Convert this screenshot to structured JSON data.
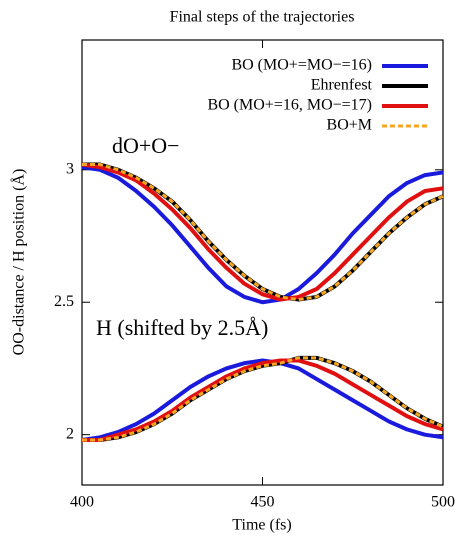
{
  "chart_data": {
    "type": "line",
    "title": "Final steps of the trajectories",
    "xlabel": "Time (fs)",
    "ylabel": "OO-distance / H position (Å)",
    "annotations": [
      "dO+O−",
      "H (shifted by 2.5Å)"
    ],
    "xlim": [
      400,
      500
    ],
    "xticks": [
      400,
      450,
      500
    ],
    "ylim": [
      1.81,
      3.49
    ],
    "yticks": [
      2,
      2.5,
      3
    ],
    "legend": "upper right",
    "x": [
      400,
      405,
      410,
      415,
      420,
      425,
      430,
      435,
      440,
      445,
      450,
      455,
      460,
      465,
      470,
      475,
      480,
      485,
      490,
      495,
      500
    ],
    "series": [
      {
        "name": "BO (MO+=MO−=16)",
        "color": "#1a1adc",
        "dash": false,
        "values": [
          3.01,
          3.0,
          2.97,
          2.92,
          2.86,
          2.79,
          2.71,
          2.63,
          2.56,
          2.52,
          2.5,
          2.51,
          2.55,
          2.61,
          2.68,
          2.76,
          2.83,
          2.9,
          2.95,
          2.98,
          2.99
        ],
        "h_values": [
          1.98,
          1.99,
          2.01,
          2.04,
          2.08,
          2.13,
          2.18,
          2.22,
          2.25,
          2.27,
          2.28,
          2.27,
          2.25,
          2.21,
          2.17,
          2.13,
          2.09,
          2.05,
          2.02,
          2.0,
          1.99
        ]
      },
      {
        "name": "Ehrenfest",
        "color": "#000000",
        "dash": false,
        "values": [
          3.02,
          3.02,
          3.0,
          2.97,
          2.93,
          2.88,
          2.81,
          2.73,
          2.66,
          2.6,
          2.55,
          2.52,
          2.51,
          2.52,
          2.56,
          2.62,
          2.69,
          2.76,
          2.82,
          2.87,
          2.9
        ],
        "h_values": [
          1.98,
          1.98,
          1.99,
          2.01,
          2.04,
          2.08,
          2.13,
          2.17,
          2.21,
          2.24,
          2.26,
          2.27,
          2.29,
          2.29,
          2.27,
          2.24,
          2.2,
          2.15,
          2.1,
          2.06,
          2.03
        ]
      },
      {
        "name": "BO (MO+=16, MO−=17)",
        "color": "#e01010",
        "dash": false,
        "values": [
          3.02,
          3.01,
          2.99,
          2.96,
          2.91,
          2.85,
          2.78,
          2.7,
          2.63,
          2.57,
          2.53,
          2.51,
          2.52,
          2.55,
          2.61,
          2.68,
          2.75,
          2.82,
          2.88,
          2.92,
          2.93
        ],
        "h_values": [
          1.98,
          1.98,
          2.0,
          2.02,
          2.05,
          2.09,
          2.14,
          2.18,
          2.22,
          2.25,
          2.27,
          2.28,
          2.28,
          2.26,
          2.23,
          2.19,
          2.15,
          2.11,
          2.07,
          2.04,
          2.02
        ]
      },
      {
        "name": "BO+M",
        "color": "#f5a623",
        "dash": true,
        "values": [
          3.02,
          3.02,
          3.0,
          2.97,
          2.93,
          2.88,
          2.81,
          2.73,
          2.66,
          2.6,
          2.55,
          2.52,
          2.51,
          2.52,
          2.56,
          2.62,
          2.69,
          2.76,
          2.82,
          2.87,
          2.9
        ],
        "h_values": [
          1.98,
          1.98,
          1.99,
          2.01,
          2.04,
          2.08,
          2.13,
          2.17,
          2.21,
          2.24,
          2.26,
          2.27,
          2.29,
          2.29,
          2.27,
          2.24,
          2.2,
          2.15,
          2.1,
          2.06,
          2.03
        ]
      }
    ]
  }
}
